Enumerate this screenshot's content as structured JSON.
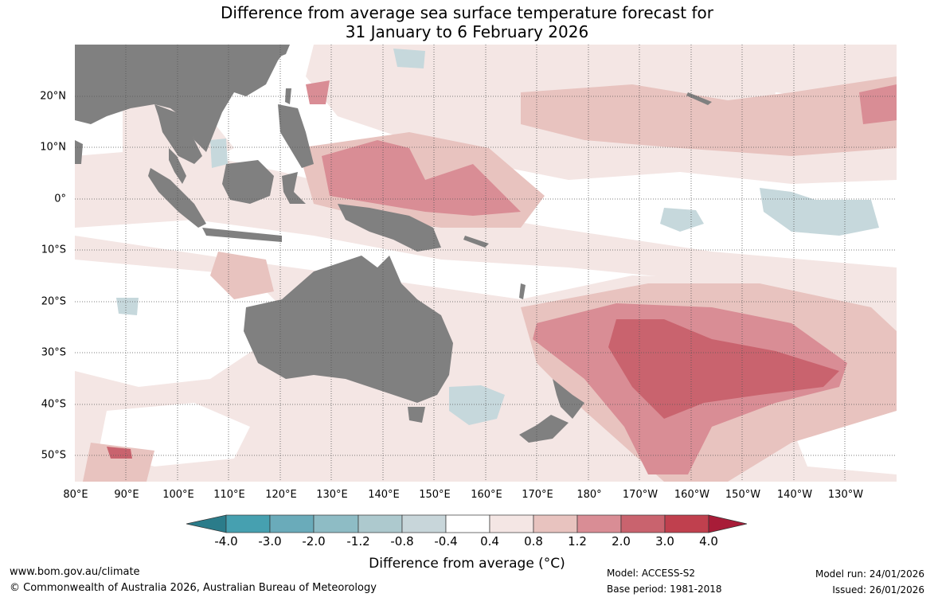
{
  "title": {
    "line1": "Difference from average sea surface temperature forecast for",
    "line2": "31 January to 6 February 2026"
  },
  "map": {
    "lat_labels": [
      "20°N",
      "10°N",
      "0°",
      "10°S",
      "20°S",
      "30°S",
      "40°S",
      "50°S"
    ],
    "lon_labels": [
      "80°E",
      "90°E",
      "100°E",
      "110°E",
      "120°E",
      "130°E",
      "140°E",
      "150°E",
      "160°E",
      "170°E",
      "180°",
      "170°W",
      "160°W",
      "150°W",
      "140°W",
      "130°W"
    ],
    "land_color": "#808080",
    "anomaly_regions": [
      {
        "name": "south-pacific-warm-core",
        "level_degC": 3.0,
        "color": "#c9636e"
      },
      {
        "name": "south-pacific-warm-outer",
        "level_degC": 2.0,
        "color": "#d98d95"
      },
      {
        "name": "west-pacific-warm-pool",
        "level_degC": 2.0,
        "color": "#d98d95"
      },
      {
        "name": "tasman-cool-patch",
        "level_degC": -0.8,
        "color": "#c6d8dc"
      },
      {
        "name": "central-pacific-cool-band",
        "level_degC": -0.8,
        "color": "#c6d8dc"
      }
    ]
  },
  "colorbar": {
    "ticks": [
      "-4.0",
      "-3.0",
      "-2.0",
      "-1.2",
      "-0.8",
      "-0.4",
      "0.4",
      "0.8",
      "1.2",
      "2.0",
      "3.0",
      "4.0"
    ],
    "colors": [
      "#2b7c8a",
      "#46a0b0",
      "#6aabba",
      "#8ebcc5",
      "#adc9ce",
      "#c8d6da",
      "#ffffff",
      "#f4e6e4",
      "#e8c3bf",
      "#d98d95",
      "#c9636e",
      "#c0404e",
      "#a81c38"
    ],
    "label": "Difference from average (°C)"
  },
  "footer": {
    "website": "www.bom.gov.au/climate",
    "copyright": "© Commonwealth of Australia 2026, Australian Bureau of Meteorology",
    "model": "Model: ACCESS-S2",
    "base_period": "Base period: 1981-2018",
    "model_run": "Model run: 24/01/2026",
    "issued": "Issued: 26/01/2026"
  }
}
